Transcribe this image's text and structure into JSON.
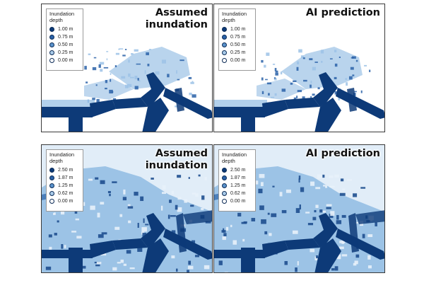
{
  "panels": [
    {
      "title": "Assumed\ninundation",
      "legend_title": "Inundation\ndepth",
      "legend": [
        "1.00 m",
        "0.75 m",
        "0.50 m",
        "0.25 m",
        "0.00 m"
      ]
    },
    {
      "title": "AI prediction",
      "legend_title": "Inundation\ndepth",
      "legend": [
        "1.00 m",
        "0.75 m",
        "0.50 m",
        "0.25 m",
        "0.00 m"
      ]
    },
    {
      "title": "Assumed\ninundation",
      "legend_title": "Inundation\ndepth",
      "legend": [
        "2.50 m",
        "1.87 m",
        "1.25 m",
        "0.62 m",
        "0.00 m"
      ]
    },
    {
      "title": "AI prediction",
      "legend_title": "Inundation\ndepth",
      "legend": [
        "2.50 m",
        "1.87 m",
        "1.25 m",
        "0.62 m",
        "0.00 m"
      ]
    }
  ],
  "colors": {
    "deep": "#0d3a78",
    "swatches": [
      "#0d3a78",
      "#2a62a8",
      "#5b93cc",
      "#a9cbe9",
      "#ffffff"
    ],
    "shallow": "#7fb0de",
    "haze": "#c9dff2"
  }
}
